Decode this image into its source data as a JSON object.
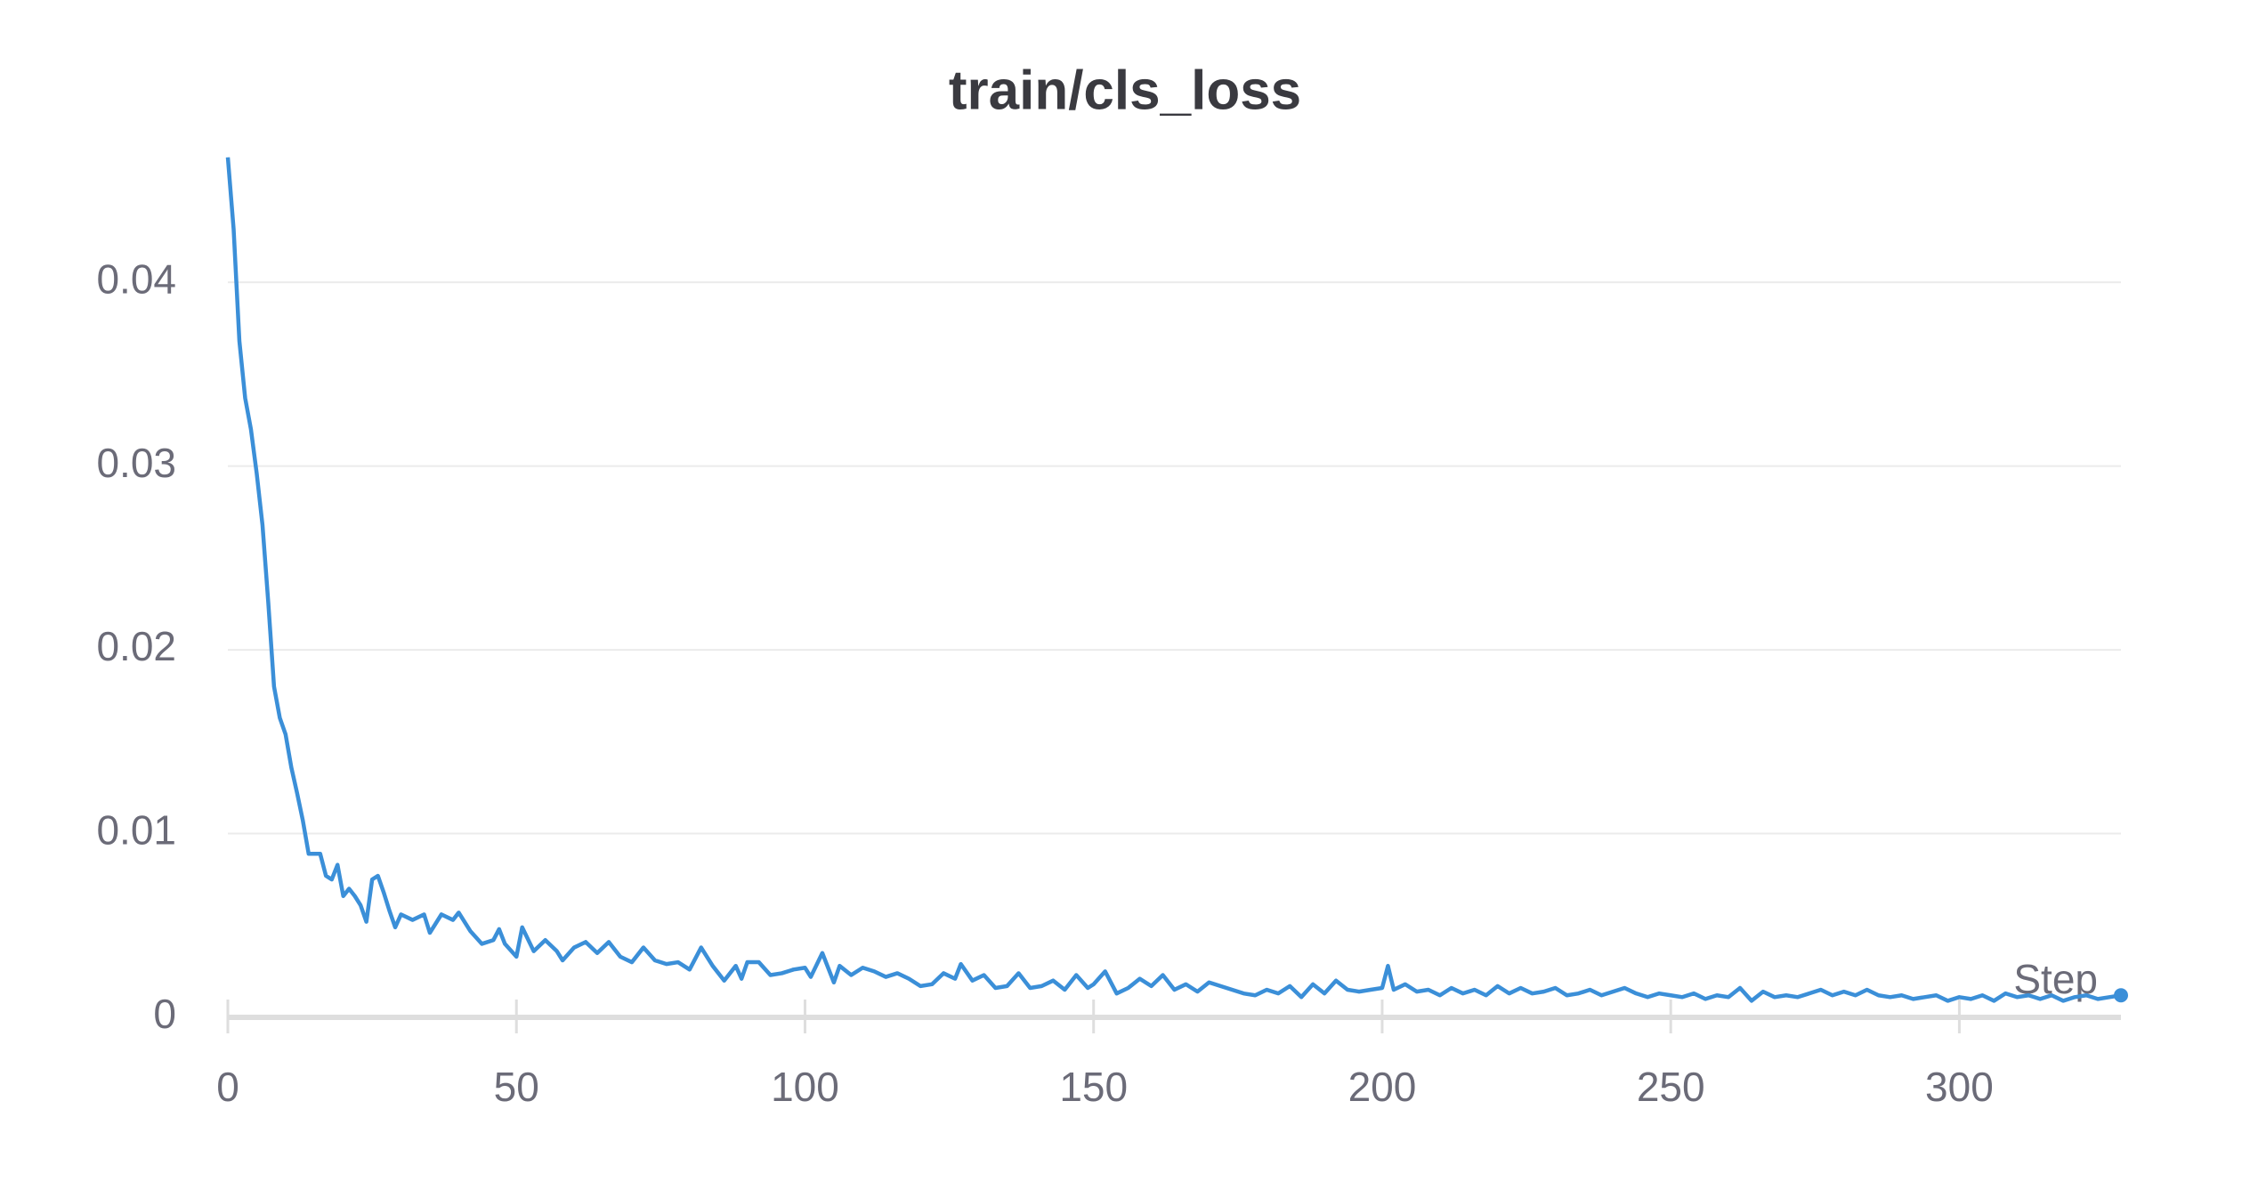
{
  "chart_data": {
    "type": "line",
    "title": "train/cls_loss",
    "xlabel": "Step",
    "color": "#3b8fd8",
    "grid": true,
    "x": [
      0,
      1,
      2,
      3,
      4,
      5,
      6,
      7,
      8,
      9,
      10,
      11,
      12,
      13,
      14,
      15,
      16,
      17,
      18,
      19,
      20,
      21,
      22,
      23,
      24,
      25,
      26,
      27,
      28,
      29,
      30,
      32,
      34,
      35,
      37,
      39,
      40,
      42,
      44,
      46,
      47,
      48,
      50,
      51,
      53,
      55,
      57,
      58,
      60,
      62,
      64,
      66,
      68,
      70,
      72,
      74,
      76,
      78,
      80,
      82,
      84,
      86,
      88,
      89,
      90,
      92,
      94,
      96,
      98,
      100,
      101,
      103,
      105,
      106,
      108,
      110,
      112,
      114,
      116,
      118,
      120,
      122,
      124,
      126,
      127,
      129,
      131,
      133,
      135,
      137,
      139,
      141,
      143,
      145,
      147,
      149,
      150,
      152,
      154,
      156,
      158,
      160,
      162,
      164,
      166,
      168,
      170,
      172,
      174,
      176,
      178,
      180,
      182,
      184,
      186,
      188,
      190,
      192,
      194,
      196,
      198,
      200,
      201,
      202,
      204,
      206,
      208,
      210,
      212,
      214,
      216,
      218,
      220,
      222,
      224,
      226,
      228,
      230,
      232,
      234,
      236,
      238,
      240,
      242,
      244,
      246,
      248,
      250,
      252,
      254,
      256,
      258,
      260,
      262,
      264,
      266,
      268,
      270,
      272,
      274,
      276,
      278,
      280,
      282,
      284,
      286,
      288,
      290,
      292,
      294,
      296,
      298,
      300,
      302,
      304,
      306,
      308,
      310,
      312,
      314,
      316,
      318,
      320,
      322,
      324,
      326,
      328
    ],
    "values": [
      0.0468,
      0.0429,
      0.0368,
      0.0337,
      0.032,
      0.0296,
      0.0268,
      0.0226,
      0.018,
      0.0163,
      0.0154,
      0.0136,
      0.0122,
      0.0107,
      0.0089,
      0.0089,
      0.0089,
      0.0077,
      0.0075,
      0.0083,
      0.0066,
      0.007,
      0.0066,
      0.0061,
      0.0052,
      0.0075,
      0.0077,
      0.0068,
      0.0058,
      0.0049,
      0.0056,
      0.0053,
      0.0056,
      0.0046,
      0.0056,
      0.0053,
      0.0057,
      0.0047,
      0.004,
      0.0042,
      0.0048,
      0.004,
      0.0033,
      0.0049,
      0.0036,
      0.0042,
      0.0036,
      0.0031,
      0.0038,
      0.0041,
      0.0035,
      0.0041,
      0.0033,
      0.003,
      0.0038,
      0.0031,
      0.0029,
      0.003,
      0.0026,
      0.0038,
      0.0028,
      0.002,
      0.0028,
      0.0021,
      0.003,
      0.003,
      0.0023,
      0.0024,
      0.0026,
      0.0027,
      0.0022,
      0.0035,
      0.0019,
      0.0028,
      0.0023,
      0.0027,
      0.0025,
      0.0022,
      0.0024,
      0.0021,
      0.0017,
      0.0018,
      0.0024,
      0.0021,
      0.0029,
      0.002,
      0.0023,
      0.0016,
      0.0017,
      0.0024,
      0.0016,
      0.0017,
      0.002,
      0.0015,
      0.0023,
      0.0016,
      0.0018,
      0.0025,
      0.0013,
      0.0016,
      0.0021,
      0.0017,
      0.0023,
      0.0015,
      0.0018,
      0.0014,
      0.0019,
      0.0017,
      0.0015,
      0.0013,
      0.0012,
      0.0015,
      0.0013,
      0.0017,
      0.0011,
      0.0018,
      0.0013,
      0.002,
      0.0015,
      0.0014,
      0.0015,
      0.0016,
      0.0028,
      0.0015,
      0.0018,
      0.0014,
      0.0015,
      0.0012,
      0.0016,
      0.0013,
      0.0015,
      0.0012,
      0.0017,
      0.0013,
      0.0016,
      0.0013,
      0.0014,
      0.0016,
      0.0012,
      0.0013,
      0.0015,
      0.0012,
      0.0014,
      0.0016,
      0.0013,
      0.0011,
      0.0013,
      0.0012,
      0.0011,
      0.0013,
      0.001,
      0.0012,
      0.0011,
      0.0016,
      0.0009,
      0.0014,
      0.0011,
      0.0012,
      0.0011,
      0.0013,
      0.0015,
      0.0012,
      0.0014,
      0.0012,
      0.0015,
      0.0012,
      0.0011,
      0.0012,
      0.001,
      0.0011,
      0.0012,
      0.0009,
      0.0011,
      0.001,
      0.0012,
      0.0009,
      0.0013,
      0.0011,
      0.0012,
      0.001,
      0.0012,
      0.0009,
      0.0011,
      0.0012,
      0.001,
      0.0011,
      0.0012
    ],
    "xlim": [
      0,
      328
    ],
    "xticks": [
      0,
      50,
      100,
      150,
      200,
      250,
      300
    ],
    "ylim": [
      0,
      0.048
    ],
    "yticks": [
      0,
      0.01,
      0.02,
      0.03,
      0.04
    ]
  }
}
